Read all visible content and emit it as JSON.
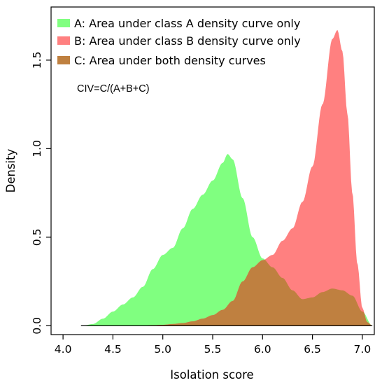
{
  "chart_data": {
    "type": "area",
    "xlabel": "Isolation score",
    "ylabel": "Density",
    "xlim": [
      3.88,
      7.12
    ],
    "ylim": [
      -0.05,
      1.8
    ],
    "xticks": [
      "4.0",
      "4.5",
      "5.0",
      "5.5",
      "6.0",
      "6.5",
      "7.0"
    ],
    "yticks": [
      "0.0",
      "0.5",
      "1.0",
      "1.5"
    ],
    "legend_position": "top-left",
    "annotation": "CIV=C/(A+B+C)",
    "legend": [
      {
        "label": "A: Area under class A density curve only",
        "color": "#80ff80"
      },
      {
        "label": "B: Area under class B density curve only",
        "color": "#ff8080"
      },
      {
        "label": "C: Area under both density curves",
        "color": "#bf8040"
      }
    ],
    "series": [
      {
        "name": "A",
        "color": "#80ff80",
        "x": [
          4.2,
          4.3,
          4.4,
          4.5,
          4.6,
          4.7,
          4.8,
          4.9,
          5.0,
          5.1,
          5.2,
          5.3,
          5.4,
          5.5,
          5.6,
          5.65,
          5.7,
          5.8,
          5.9,
          6.0,
          6.1,
          6.2,
          6.3,
          6.4,
          6.5,
          6.6,
          6.7,
          6.8,
          6.9,
          7.0,
          7.1
        ],
        "values": [
          0.0,
          0.01,
          0.04,
          0.08,
          0.12,
          0.16,
          0.22,
          0.32,
          0.4,
          0.44,
          0.55,
          0.66,
          0.74,
          0.82,
          0.92,
          0.97,
          0.94,
          0.72,
          0.5,
          0.38,
          0.33,
          0.27,
          0.2,
          0.15,
          0.16,
          0.19,
          0.21,
          0.2,
          0.17,
          0.08,
          0.0
        ]
      },
      {
        "name": "B",
        "color": "#ff8080",
        "x": [
          4.2,
          4.6,
          4.8,
          4.9,
          5.0,
          5.1,
          5.2,
          5.3,
          5.4,
          5.5,
          5.6,
          5.7,
          5.8,
          5.9,
          6.0,
          6.1,
          6.2,
          6.3,
          6.4,
          6.5,
          6.6,
          6.7,
          6.75,
          6.8,
          6.85,
          6.9,
          6.95,
          7.0,
          7.05,
          7.1
        ],
        "values": [
          0.0,
          0.0,
          0.0,
          0.003,
          0.005,
          0.01,
          0.015,
          0.025,
          0.04,
          0.06,
          0.09,
          0.14,
          0.25,
          0.33,
          0.37,
          0.4,
          0.48,
          0.55,
          0.7,
          0.9,
          1.25,
          1.62,
          1.67,
          1.55,
          1.2,
          0.75,
          0.35,
          0.1,
          0.02,
          0.0
        ]
      }
    ]
  }
}
